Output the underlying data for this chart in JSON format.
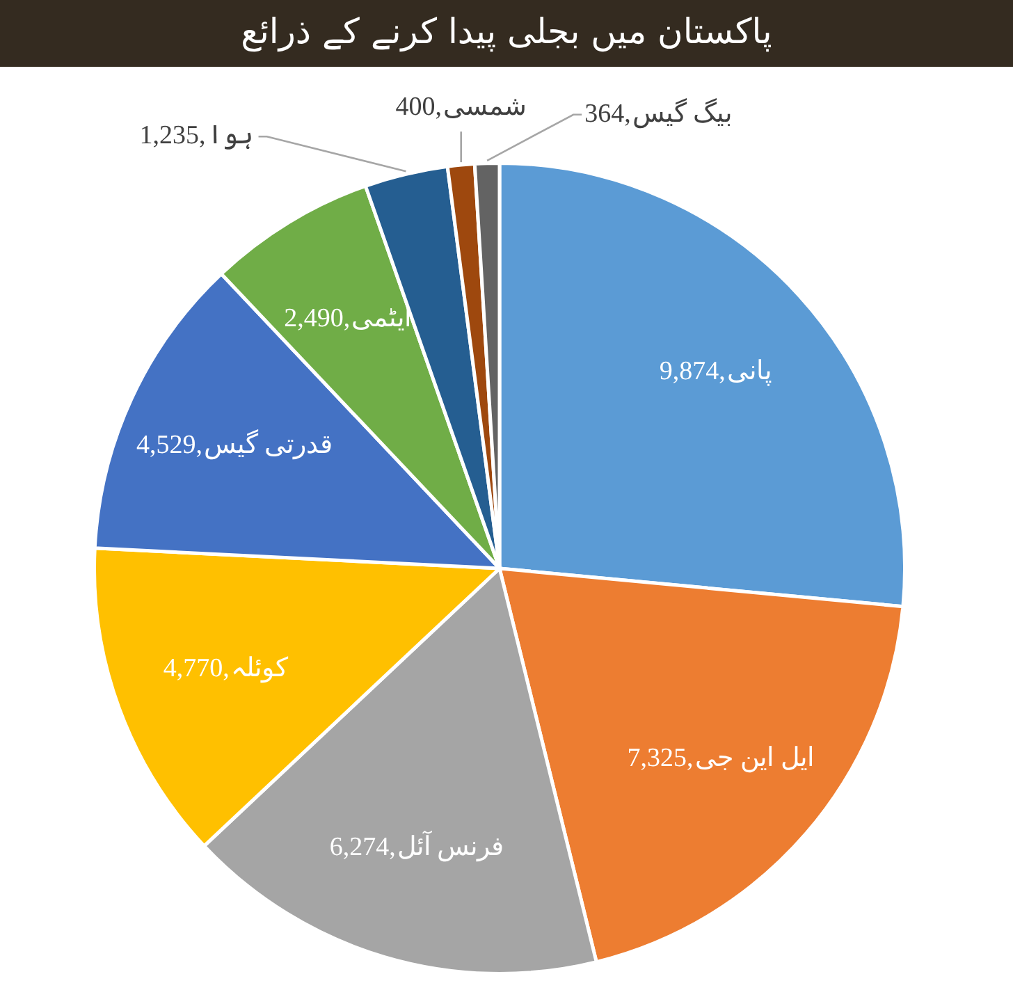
{
  "chart_data": {
    "type": "pie",
    "title": "پاکستان میں بجلی پیدا کرنے کے ذرائع",
    "categories": [
      "پانی",
      "ایل این جی",
      "فرنس آئل",
      "کوئلہ",
      "قدرتی گیس",
      "ایٹمی",
      "ہوا",
      "شمسی",
      "بیگ گیس"
    ],
    "values": [
      9874,
      7325,
      6274,
      4770,
      4529,
      2490,
      1235,
      400,
      364
    ],
    "colors": [
      "#5b9bd5",
      "#ed7d31",
      "#a5a5a5",
      "#ffc000",
      "#4472c4",
      "#70ad47",
      "#255e91",
      "#9e480e",
      "#636363"
    ],
    "value_labels": [
      "9,874,",
      "7,325,",
      "6,274,",
      "4,770,",
      "4,529,",
      "2,490,",
      "1,235,",
      "400,",
      "364,"
    ],
    "legend": false
  }
}
